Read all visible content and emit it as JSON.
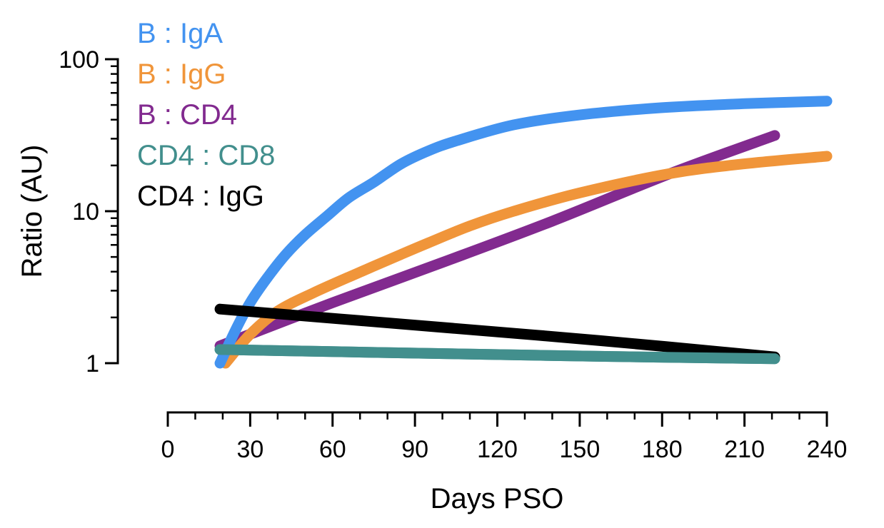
{
  "chart_data": {
    "type": "line",
    "title": "",
    "xlabel": "Days PSO",
    "ylabel": "Ratio (AU)",
    "xlim": [
      0,
      240
    ],
    "ylim": [
      1,
      100
    ],
    "yscale": "log",
    "grid": false,
    "legend_position": "top-left",
    "x_ticks": [
      0,
      30,
      60,
      90,
      120,
      150,
      180,
      210,
      240
    ],
    "x_tick_labels": [
      "0",
      "30",
      "60",
      "90",
      "120",
      "150",
      "180",
      "210",
      "240"
    ],
    "x_minor_step": 10,
    "y_ticks": [
      1,
      10,
      100
    ],
    "y_tick_labels": [
      "1",
      "10",
      "100"
    ],
    "series": [
      {
        "name": "B : IgA",
        "color": "#4393f0",
        "x": [
          19,
          25,
          30,
          36,
          43,
          50,
          58,
          66,
          75,
          85,
          95,
          105,
          126,
          150,
          180,
          210,
          240
        ],
        "y": [
          1.0,
          1.7,
          2.5,
          3.6,
          5.2,
          7.0,
          9.3,
          12.3,
          15.5,
          20.5,
          25.0,
          29.0,
          37.0,
          43.0,
          48.0,
          51.0,
          53.0
        ]
      },
      {
        "name": "B : IgG",
        "color": "#f0953a",
        "x": [
          21,
          30,
          40,
          53,
          69,
          85,
          95,
          110,
          126,
          150,
          183,
          210,
          240
        ],
        "y": [
          1.0,
          1.55,
          2.2,
          2.9,
          3.9,
          5.2,
          6.2,
          8.0,
          10.0,
          13.2,
          17.7,
          20.5,
          23.0
        ]
      },
      {
        "name": "B : CD4",
        "color": "#822a8f",
        "x": [
          19,
          60,
          100,
          140,
          183,
          221
        ],
        "y": [
          1.3,
          2.5,
          4.6,
          8.6,
          17.7,
          31.5
        ]
      },
      {
        "name": "CD4 : CD8",
        "color": "#428f8d",
        "x": [
          19,
          95,
          157,
          221
        ],
        "y": [
          1.23,
          1.16,
          1.11,
          1.07
        ]
      },
      {
        "name": "CD4 : IgG",
        "color": "#000000",
        "x": [
          19,
          95,
          157,
          221
        ],
        "y": [
          2.27,
          1.75,
          1.41,
          1.1
        ]
      }
    ]
  }
}
